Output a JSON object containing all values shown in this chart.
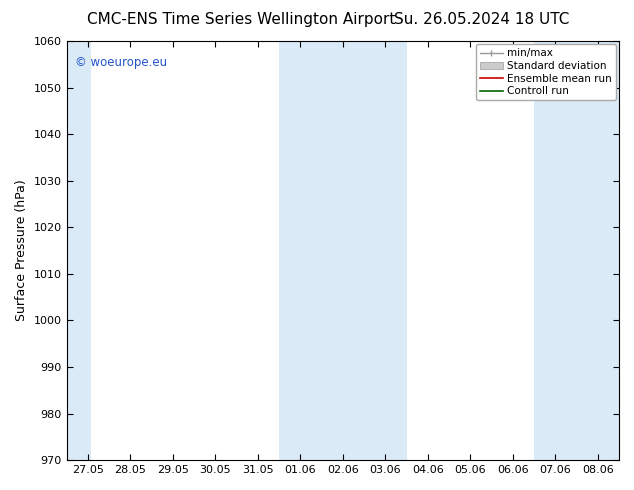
{
  "title_left": "CMC-ENS Time Series Wellington Airport",
  "title_right": "Su. 26.05.2024 18 UTC",
  "ylabel": "Surface Pressure (hPa)",
  "ylim": [
    970,
    1060
  ],
  "yticks": [
    970,
    980,
    990,
    1000,
    1010,
    1020,
    1030,
    1040,
    1050,
    1060
  ],
  "xtick_labels": [
    "27.05",
    "28.05",
    "29.05",
    "30.05",
    "31.05",
    "01.06",
    "02.06",
    "03.06",
    "04.06",
    "05.06",
    "06.06",
    "07.06",
    "08.06"
  ],
  "bg_color": "#ffffff",
  "plot_bg_color": "#ffffff",
  "band_color": "#daeaf7",
  "watermark_text": "© woeurope.eu",
  "watermark_color": "#2255cc",
  "title_fontsize": 11,
  "axis_label_fontsize": 9,
  "tick_fontsize": 8,
  "legend_fontsize": 7.5
}
